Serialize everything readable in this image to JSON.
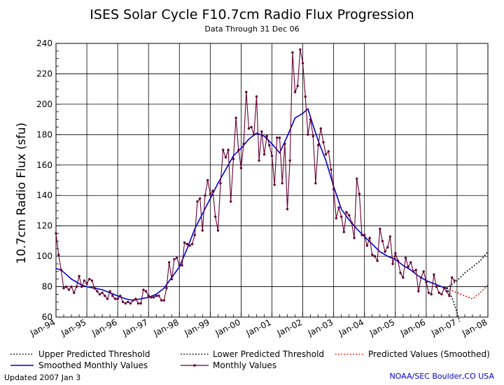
{
  "chart_data": {
    "type": "line",
    "title": "ISES Solar Cycle F10.7cm Radio Flux Progression",
    "subtitle": "Data Through 31 Dec 06",
    "ylabel": "10.7cm Radio Flux (sfu)",
    "xlabel": "",
    "ylim": [
      60,
      240
    ],
    "yticks": [
      60,
      80,
      100,
      120,
      140,
      160,
      180,
      200,
      220,
      240
    ],
    "xlim": [
      "Jan-94",
      "Jan-08"
    ],
    "xticks": [
      "Jan-94",
      "Jan-95",
      "Jan-96",
      "Jan-97",
      "Jan-98",
      "Jan-99",
      "Jan-00",
      "Jan-01",
      "Jan-02",
      "Jan-03",
      "Jan-04",
      "Jan-05",
      "Jan-06",
      "Jan-07",
      "Jan-08"
    ],
    "grid": true,
    "legend_position": "bottom",
    "series": [
      {
        "name": "Monthly Values",
        "color": "#660033",
        "style": "line-markers",
        "points": [
          [
            "1994-01",
            115
          ],
          [
            "1994-02",
            101
          ],
          [
            "1994-03",
            91
          ],
          [
            "1994-04",
            79
          ],
          [
            "1994-05",
            80
          ],
          [
            "1994-06",
            78
          ],
          [
            "1994-07",
            80
          ],
          [
            "1994-08",
            76
          ],
          [
            "1994-09",
            80
          ],
          [
            "1994-10",
            87
          ],
          [
            "1994-11",
            80
          ],
          [
            "1994-12",
            84
          ],
          [
            "1995-01",
            82
          ],
          [
            "1995-02",
            85
          ],
          [
            "1995-03",
            84
          ],
          [
            "1995-04",
            79
          ],
          [
            "1995-05",
            77
          ],
          [
            "1995-06",
            75
          ],
          [
            "1995-07",
            76
          ],
          [
            "1995-08",
            74
          ],
          [
            "1995-09",
            72
          ],
          [
            "1995-10",
            77
          ],
          [
            "1995-11",
            74
          ],
          [
            "1995-12",
            72
          ],
          [
            "1996-01",
            72
          ],
          [
            "1996-02",
            74
          ],
          [
            "1996-03",
            70
          ],
          [
            "1996-04",
            69
          ],
          [
            "1996-05",
            70
          ],
          [
            "1996-06",
            69
          ],
          [
            "1996-07",
            71
          ],
          [
            "1996-08",
            72
          ],
          [
            "1996-09",
            69
          ],
          [
            "1996-10",
            69
          ],
          [
            "1996-11",
            78
          ],
          [
            "1996-12",
            77
          ],
          [
            "1997-01",
            74
          ],
          [
            "1997-02",
            73
          ],
          [
            "1997-03",
            73
          ],
          [
            "1997-04",
            74
          ],
          [
            "1997-05",
            74
          ],
          [
            "1997-06",
            71
          ],
          [
            "1997-07",
            71
          ],
          [
            "1997-08",
            79
          ],
          [
            "1997-09",
            96
          ],
          [
            "1997-10",
            85
          ],
          [
            "1997-11",
            98
          ],
          [
            "1997-12",
            99
          ],
          [
            "1998-01",
            94
          ],
          [
            "1998-02",
            94
          ],
          [
            "1998-03",
            109
          ],
          [
            "1998-04",
            108
          ],
          [
            "1998-05",
            107
          ],
          [
            "1998-06",
            108
          ],
          [
            "1998-07",
            114
          ],
          [
            "1998-08",
            136
          ],
          [
            "1998-09",
            138
          ],
          [
            "1998-10",
            117
          ],
          [
            "1998-11",
            140
          ],
          [
            "1998-12",
            150
          ],
          [
            "1999-01",
            141
          ],
          [
            "1999-02",
            143
          ],
          [
            "1999-03",
            126
          ],
          [
            "1999-04",
            117
          ],
          [
            "1999-05",
            148
          ],
          [
            "1999-06",
            170
          ],
          [
            "1999-07",
            165
          ],
          [
            "1999-08",
            170
          ],
          [
            "1999-09",
            136
          ],
          [
            "1999-10",
            164
          ],
          [
            "1999-11",
            191
          ],
          [
            "1999-12",
            170
          ],
          [
            "2000-01",
            158
          ],
          [
            "2000-02",
            174
          ],
          [
            "2000-03",
            208
          ],
          [
            "2000-04",
            184
          ],
          [
            "2000-05",
            185
          ],
          [
            "2000-06",
            180
          ],
          [
            "2000-07",
            205
          ],
          [
            "2000-08",
            163
          ],
          [
            "2000-09",
            182
          ],
          [
            "2000-10",
            167
          ],
          [
            "2000-11",
            179
          ],
          [
            "2000-12",
            173
          ],
          [
            "2001-01",
            166
          ],
          [
            "2001-02",
            147
          ],
          [
            "2001-03",
            178
          ],
          [
            "2001-04",
            178
          ],
          [
            "2001-05",
            148
          ],
          [
            "2001-06",
            174
          ],
          [
            "2001-07",
            131
          ],
          [
            "2001-08",
            163
          ],
          [
            "2001-09",
            234
          ],
          [
            "2001-10",
            208
          ],
          [
            "2001-11",
            212
          ],
          [
            "2001-12",
            236
          ],
          [
            "2002-01",
            227
          ],
          [
            "2002-02",
            205
          ],
          [
            "2002-03",
            180
          ],
          [
            "2002-04",
            190
          ],
          [
            "2002-05",
            179
          ],
          [
            "2002-06",
            148
          ],
          [
            "2002-07",
            173
          ],
          [
            "2002-08",
            184
          ],
          [
            "2002-09",
            175
          ],
          [
            "2002-10",
            167
          ],
          [
            "2002-11",
            169
          ],
          [
            "2002-12",
            157
          ],
          [
            "2003-01",
            144
          ],
          [
            "2003-02",
            125
          ],
          [
            "2003-03",
            132
          ],
          [
            "2003-04",
            126
          ],
          [
            "2003-05",
            116
          ],
          [
            "2003-06",
            129
          ],
          [
            "2003-07",
            127
          ],
          [
            "2003-08",
            122
          ],
          [
            "2003-09",
            112
          ],
          [
            "2003-10",
            151
          ],
          [
            "2003-11",
            141
          ],
          [
            "2003-12",
            114
          ],
          [
            "2004-01",
            114
          ],
          [
            "2004-02",
            107
          ],
          [
            "2004-03",
            112
          ],
          [
            "2004-04",
            101
          ],
          [
            "2004-05",
            100
          ],
          [
            "2004-06",
            97
          ],
          [
            "2004-07",
            118
          ],
          [
            "2004-08",
            110
          ],
          [
            "2004-09",
            103
          ],
          [
            "2004-10",
            106
          ],
          [
            "2004-11",
            113
          ],
          [
            "2004-12",
            95
          ],
          [
            "2005-01",
            102
          ],
          [
            "2005-02",
            97
          ],
          [
            "2005-03",
            89
          ],
          [
            "2005-04",
            86
          ],
          [
            "2005-05",
            99
          ],
          [
            "2005-06",
            93
          ],
          [
            "2005-07",
            96
          ],
          [
            "2005-08",
            90
          ],
          [
            "2005-09",
            91
          ],
          [
            "2005-10",
            77
          ],
          [
            "2005-11",
            86
          ],
          [
            "2005-12",
            90
          ],
          [
            "2006-01",
            83
          ],
          [
            "2006-02",
            76
          ],
          [
            "2006-03",
            75
          ],
          [
            "2006-04",
            88
          ],
          [
            "2006-05",
            80
          ],
          [
            "2006-06",
            76
          ],
          [
            "2006-07",
            75
          ],
          [
            "2006-08",
            79
          ],
          [
            "2006-09",
            77
          ],
          [
            "2006-10",
            74
          ],
          [
            "2006-11",
            86
          ],
          [
            "2006-12",
            84
          ]
        ]
      },
      {
        "name": "Smoothed Monthly Values",
        "color": "#0000cc",
        "style": "line",
        "points": [
          [
            "1994-01",
            92
          ],
          [
            "1994-03",
            91
          ],
          [
            "1994-05",
            88
          ],
          [
            "1994-07",
            85
          ],
          [
            "1994-09",
            83
          ],
          [
            "1994-11",
            81
          ],
          [
            "1995-01",
            80
          ],
          [
            "1995-04",
            79
          ],
          [
            "1995-07",
            78
          ],
          [
            "1995-10",
            76
          ],
          [
            "1996-01",
            74
          ],
          [
            "1996-04",
            72
          ],
          [
            "1996-07",
            71
          ],
          [
            "1996-10",
            72
          ],
          [
            "1997-01",
            73
          ],
          [
            "1997-04",
            75
          ],
          [
            "1997-07",
            79
          ],
          [
            "1997-10",
            86
          ],
          [
            "1998-01",
            93
          ],
          [
            "1998-04",
            105
          ],
          [
            "1998-07",
            118
          ],
          [
            "1998-10",
            128
          ],
          [
            "1999-01",
            138
          ],
          [
            "1999-04",
            148
          ],
          [
            "1999-07",
            157
          ],
          [
            "1999-10",
            166
          ],
          [
            "2000-01",
            171
          ],
          [
            "2000-04",
            177
          ],
          [
            "2000-07",
            181
          ],
          [
            "2000-10",
            179
          ],
          [
            "2001-01",
            174
          ],
          [
            "2001-04",
            168
          ],
          [
            "2001-07",
            179
          ],
          [
            "2001-10",
            191
          ],
          [
            "2002-01",
            194
          ],
          [
            "2002-03",
            197
          ],
          [
            "2002-05",
            186
          ],
          [
            "2002-07",
            176
          ],
          [
            "2002-10",
            163
          ],
          [
            "2003-01",
            146
          ],
          [
            "2003-04",
            131
          ],
          [
            "2003-07",
            124
          ],
          [
            "2003-10",
            118
          ],
          [
            "2004-01",
            113
          ],
          [
            "2004-04",
            108
          ],
          [
            "2004-07",
            103
          ],
          [
            "2004-10",
            100
          ],
          [
            "2005-01",
            98
          ],
          [
            "2005-04",
            94
          ],
          [
            "2005-07",
            91
          ],
          [
            "2005-10",
            87
          ],
          [
            "2006-01",
            84
          ],
          [
            "2006-04",
            82
          ],
          [
            "2006-07",
            80
          ],
          [
            "2006-09",
            79
          ]
        ]
      },
      {
        "name": "Upper Predicted Threshold",
        "color": "#000000",
        "style": "dotted",
        "points": [
          [
            "2006-09",
            79
          ],
          [
            "2007-01",
            84
          ],
          [
            "2007-04",
            89
          ],
          [
            "2007-07",
            93
          ],
          [
            "2007-10",
            97
          ],
          [
            "2008-01",
            103
          ]
        ]
      },
      {
        "name": "Lower Predicted Threshold",
        "color": "#000000",
        "style": "dotted",
        "points": [
          [
            "2006-09",
            79
          ],
          [
            "2006-11",
            73
          ],
          [
            "2007-01",
            63
          ],
          [
            "2007-02",
            57
          ]
        ]
      },
      {
        "name": "Predicted Values (Smoothed)",
        "color": "#ff0000",
        "style": "dotted",
        "points": [
          [
            "2006-09",
            79
          ],
          [
            "2007-01",
            76
          ],
          [
            "2007-04",
            74
          ],
          [
            "2007-07",
            72
          ],
          [
            "2007-10",
            76
          ],
          [
            "2008-01",
            81
          ]
        ]
      }
    ]
  },
  "footer": {
    "updated": "Updated 2007 Jan  3",
    "source": "NOAA/SEC Boulder,CO USA"
  }
}
